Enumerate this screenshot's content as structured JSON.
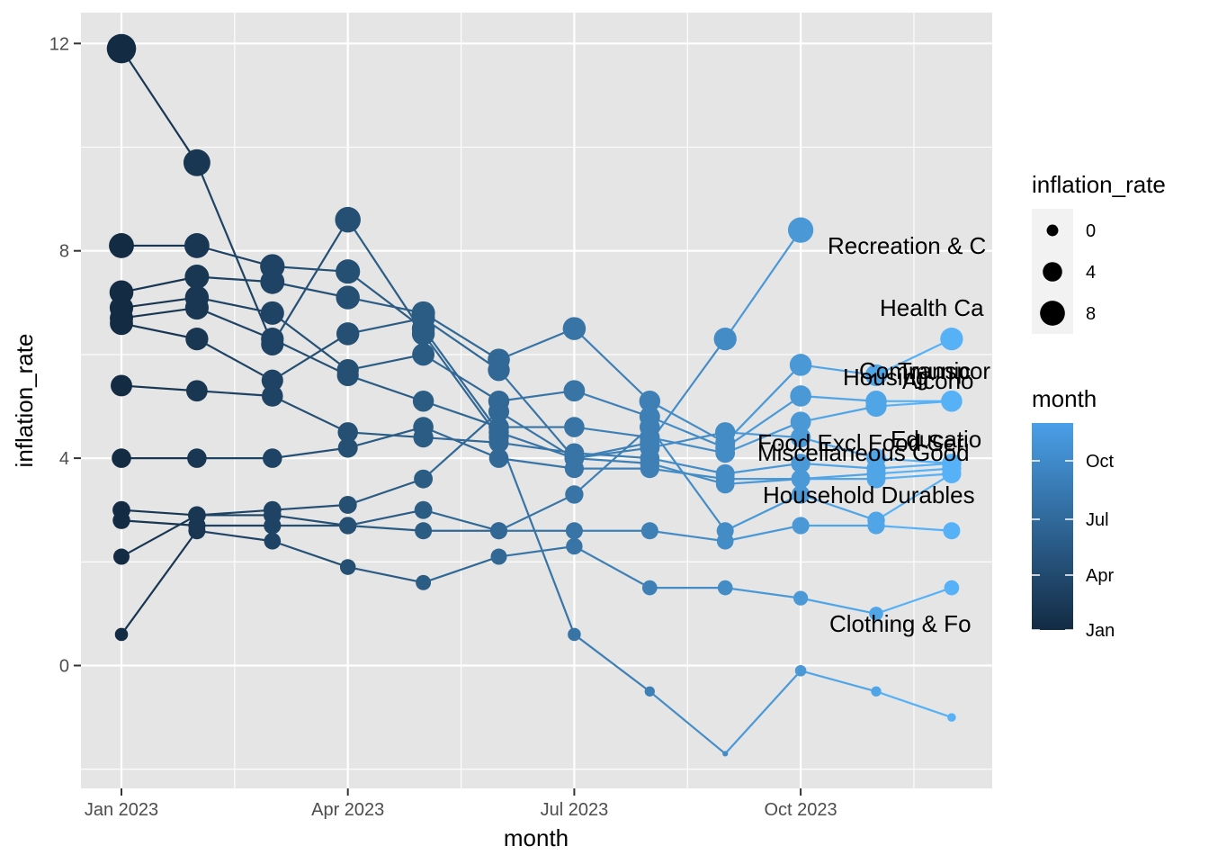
{
  "chart_data": {
    "type": "line",
    "xlabel": "month",
    "ylabel": "inflation_rate",
    "x_ticks": [
      "Jan 2023",
      "Apr 2023",
      "Jul 2023",
      "Oct 2023"
    ],
    "y_ticks": [
      "0",
      "4",
      "8",
      "12"
    ],
    "months": [
      "2023-01",
      "2023-02",
      "2023-03",
      "2023-04",
      "2023-05",
      "2023-06",
      "2023-07",
      "2023-08",
      "2023-09",
      "2023-10",
      "2023-11",
      "2023-12"
    ],
    "ylim": [
      -2.3,
      12.6
    ],
    "grid": true,
    "size_legend": {
      "title": "inflation_rate",
      "values": [
        0,
        4,
        8
      ],
      "labels": [
        "0",
        "4",
        "8"
      ]
    },
    "color_legend": {
      "title": "month",
      "labels": [
        "Oct",
        "Jul",
        "Apr",
        "Jan"
      ],
      "low_color": "#132B43",
      "high_color": "#56B1F7"
    },
    "series": [
      {
        "values": [
          11.9,
          9.7,
          6.2,
          8.6,
          6.4,
          4.4,
          0.6,
          -0.5,
          -1.7,
          -0.1,
          -0.5,
          -1.0
        ]
      },
      {
        "values": [
          8.1,
          8.1,
          7.7,
          7.6,
          6.5,
          4.5,
          4.0,
          4.3,
          6.3,
          8.4,
          null,
          null
        ],
        "label": "Recreation & C"
      },
      {
        "values": [
          7.2,
          7.5,
          7.4,
          7.1,
          6.8,
          5.9,
          6.5,
          5.1,
          4.3,
          5.8,
          5.6,
          6.3
        ],
        "label": "Health Ca"
      },
      {
        "values": [
          6.9,
          7.1,
          6.8,
          5.7,
          6.0,
          5.1,
          5.3,
          4.8,
          4.2,
          5.2,
          5.1,
          5.1
        ],
        "label": "Communic"
      },
      {
        "values": [
          6.7,
          6.9,
          6.3,
          5.6,
          5.1,
          4.6,
          4.6,
          4.4,
          4.1,
          4.7,
          5.0,
          5.1
        ],
        "label": "Transpor"
      },
      {
        "values": [
          6.6,
          6.3,
          5.5,
          6.4,
          6.7,
          5.7,
          4.0,
          4.2,
          4.5,
          4.4,
          4.0,
          3.9
        ],
        "label": "Alcoho"
      },
      {
        "values": [
          5.4,
          5.3,
          5.2,
          4.5,
          4.4,
          4.3,
          4.1,
          4.0,
          3.7,
          3.9,
          3.8,
          3.9
        ],
        "label": "Housing"
      },
      {
        "values": [
          4.0,
          4.0,
          4.0,
          4.2,
          4.6,
          4.0,
          3.8,
          3.8,
          3.6,
          3.6,
          3.7,
          3.8
        ],
        "label": "Educatio"
      },
      {
        "values": [
          3.0,
          2.9,
          3.0,
          3.1,
          3.6,
          4.9,
          4.0,
          3.9,
          3.5,
          3.6,
          3.6,
          3.7
        ],
        "label": "Food Excl Food Ser"
      },
      {
        "values": [
          2.8,
          2.7,
          2.7,
          2.7,
          3.0,
          2.6,
          3.3,
          4.6,
          2.6,
          3.3,
          2.8,
          3.7
        ],
        "label": "Miscellaneous Good"
      },
      {
        "values": [
          2.1,
          2.9,
          2.9,
          2.7,
          2.6,
          2.6,
          2.6,
          2.6,
          2.4,
          2.7,
          2.7,
          2.6
        ],
        "label": "Household Durables"
      },
      {
        "values": [
          0.6,
          2.6,
          2.4,
          1.9,
          1.6,
          2.1,
          2.3,
          1.5,
          1.5,
          1.3,
          1.0,
          1.5
        ],
        "label": "Clothing & Fo"
      }
    ],
    "end_labels": [
      "Recreation & C",
      "Health Ca",
      "Communic",
      "Transpor",
      "Housing",
      "Alcoho",
      "Food Excl Food Ser",
      "Educatio",
      "Miscellaneous Good",
      "Household Durables",
      "Clothing & Fo"
    ]
  }
}
